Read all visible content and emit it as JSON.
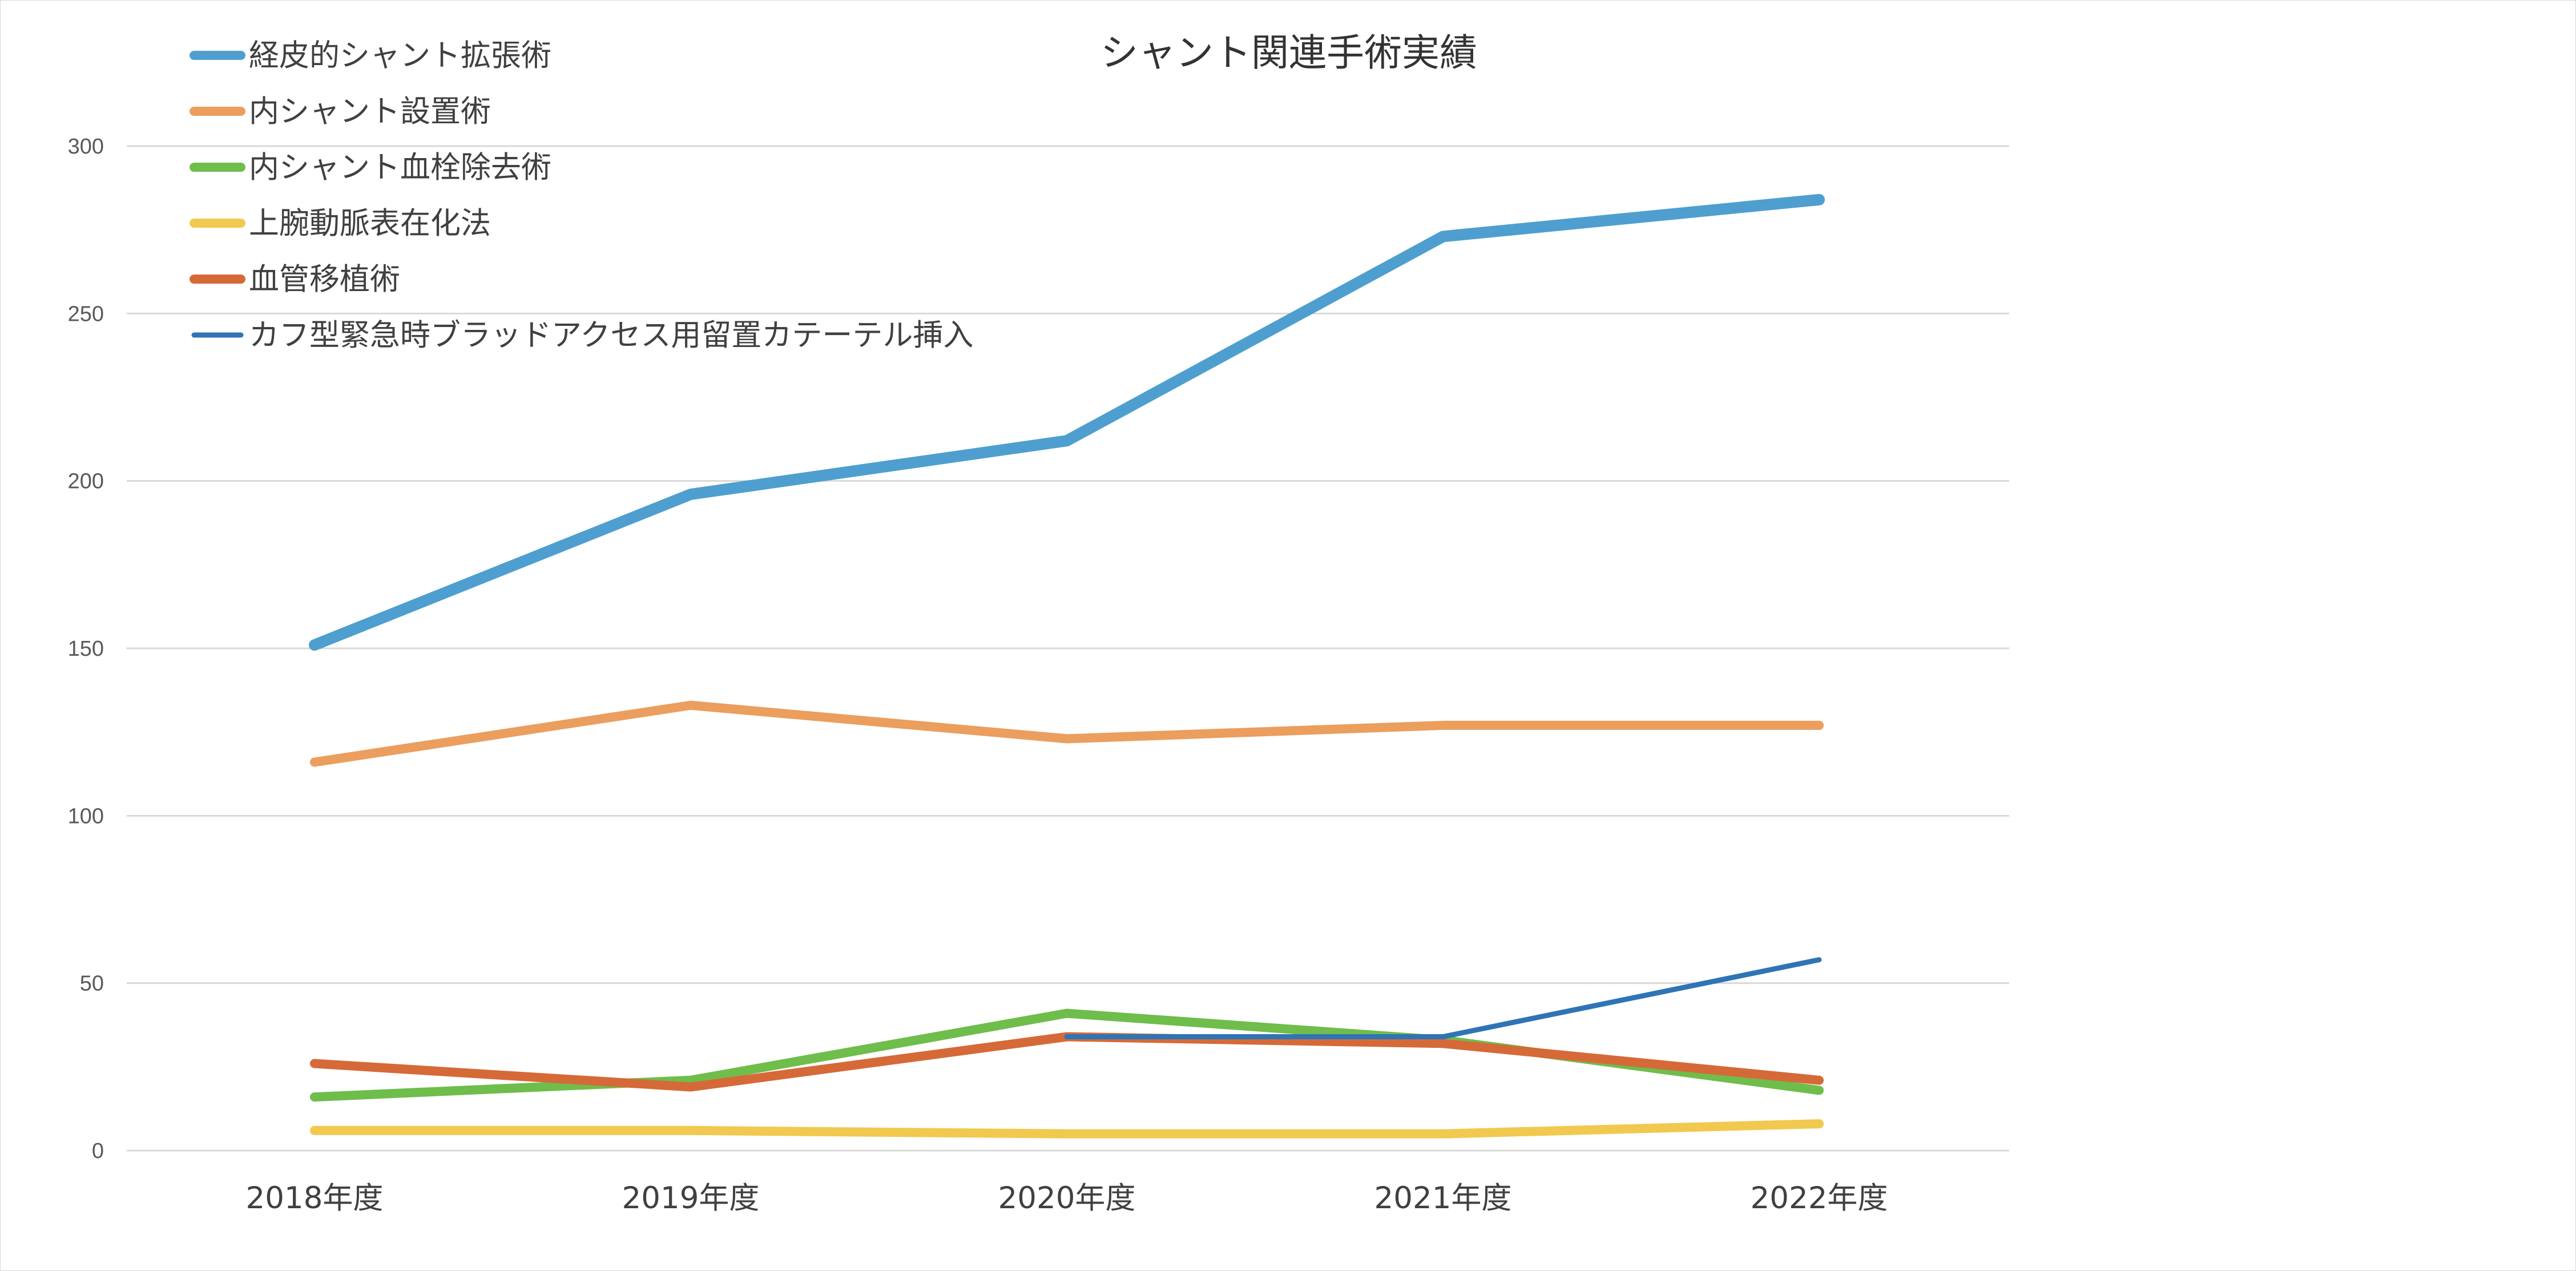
{
  "chart_data": {
    "type": "line",
    "title": "シャント関連手術実績",
    "categories": [
      "2018年度",
      "2019年度",
      "2020年度",
      "2021年度",
      "2022年度"
    ],
    "ylim": [
      0,
      300
    ],
    "yticks": [
      0,
      50,
      100,
      150,
      200,
      250,
      300
    ],
    "grid": true,
    "legend_position": "top-left",
    "series": [
      {
        "name": "経皮的シャント拡張術",
        "color": "#4e9fcf",
        "values": [
          151,
          196,
          212,
          273,
          284
        ]
      },
      {
        "name": "内シャント設置術",
        "color": "#eb9e5e",
        "values": [
          116,
          133,
          123,
          127,
          127
        ]
      },
      {
        "name": "内シャント血栓除去術",
        "color": "#6fbd4b",
        "values": [
          16,
          21,
          41,
          33,
          18
        ]
      },
      {
        "name": "上腕動脈表在化法",
        "color": "#f1c94e",
        "values": [
          6,
          6,
          5,
          5,
          8
        ]
      },
      {
        "name": "血管移植術",
        "color": "#d56a38",
        "values": [
          26,
          19,
          34,
          32,
          21
        ]
      },
      {
        "name": "カフ型緊急時ブラッドアクセス用留置カテーテル挿入",
        "color": "#2f74b5",
        "values": [
          null,
          null,
          34,
          34,
          57
        ]
      }
    ]
  }
}
